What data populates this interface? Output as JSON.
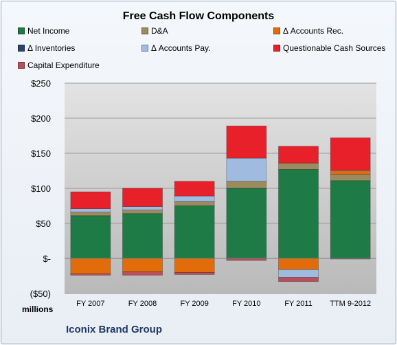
{
  "chart_data": {
    "type": "bar",
    "stacked": true,
    "title": "Free Cash Flow Components",
    "units_label": "millions",
    "footer": "Iconix Brand Group",
    "categories": [
      "FY 2007",
      "FY 2008",
      "FY 2009",
      "FY 2010",
      "FY 2011",
      "TTM 9-2012"
    ],
    "ylim": [
      -50,
      250
    ],
    "yticks": [
      -50,
      0,
      50,
      100,
      150,
      200,
      250
    ],
    "ytick_labels": [
      "($50)",
      "$-",
      "$50",
      "$100",
      "$150",
      "$200",
      "$250"
    ],
    "grid": true,
    "legend_position": "top",
    "series": [
      {
        "name": "Net Income",
        "color": "#1e7b45",
        "values": [
          61,
          64,
          75,
          100,
          127,
          111
        ]
      },
      {
        "name": "D&A",
        "color": "#9c8b5e",
        "values": [
          5,
          5,
          6,
          10,
          9,
          9
        ]
      },
      {
        "name": "Δ Accounts Rec.",
        "color": "#e36c0a",
        "values": [
          -22,
          -19,
          -20,
          0,
          -16,
          5
        ]
      },
      {
        "name": "Δ Inventories",
        "color": "#2b4468",
        "values": [
          0,
          0,
          0,
          0,
          0,
          0
        ]
      },
      {
        "name": "Δ Accounts Pay.",
        "color": "#9fbbe0",
        "values": [
          5,
          5,
          8,
          33,
          -11,
          1
        ]
      },
      {
        "name": "Questionable Cash Sources",
        "color": "#e8202a",
        "values": [
          24,
          26,
          21,
          46,
          24,
          46
        ]
      },
      {
        "name": "Capital Expenditure",
        "color": "#b8505c",
        "values": [
          -2,
          -5,
          -3,
          -3,
          -6,
          -1
        ]
      }
    ]
  }
}
